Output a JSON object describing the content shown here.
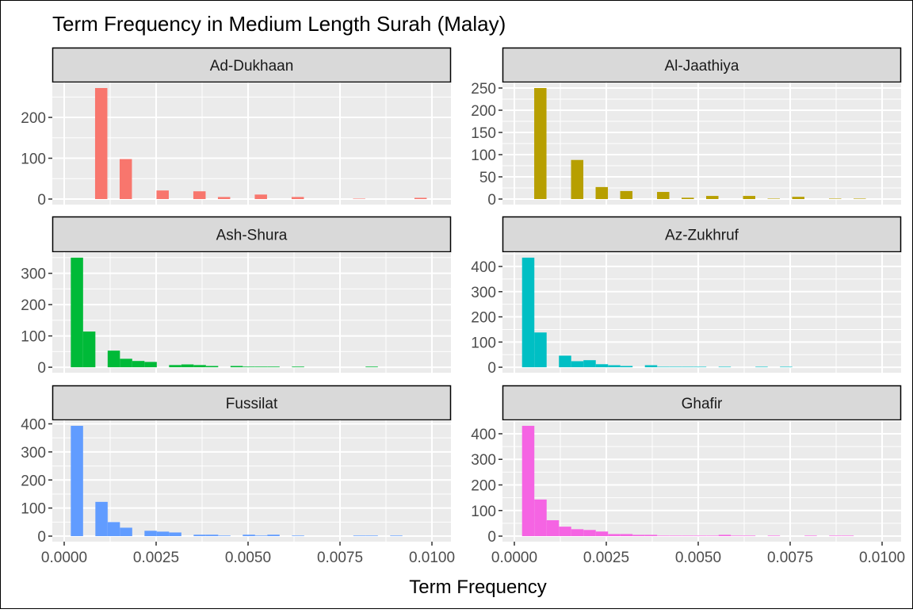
{
  "chart_data": {
    "type": "bar",
    "subtype": "faceted histogram",
    "title": "Term Frequency in Medium Length Surah (Malay)",
    "xlabel": "Term Frequency",
    "ylabel": "",
    "x_ticks": [
      "0.0000",
      "0.0025",
      "0.0050",
      "0.0075",
      "0.0100"
    ],
    "x_tick_values": [
      0,
      0.0025,
      0.005,
      0.0075,
      0.01
    ],
    "xlim": [
      -0.000323,
      0.010517
    ],
    "grid": true,
    "legend": "none",
    "bin_width": 0.000334,
    "panels": [
      {
        "name": "Ad-Dukhaan",
        "color": "#F8766D",
        "bin_start": 0.00084,
        "y_ticks": [
          0,
          100,
          200
        ],
        "counts": [
          272,
          0,
          98,
          0,
          0,
          21,
          0,
          0,
          19,
          0,
          5,
          0,
          0,
          11,
          0,
          0,
          5,
          0,
          0,
          0,
          0,
          1,
          0,
          0,
          0,
          0,
          3
        ]
      },
      {
        "name": "Al-Jaathiya",
        "color": "#B79F00",
        "bin_start": 0.00054,
        "y_ticks": [
          0,
          50,
          100,
          150,
          200,
          250
        ],
        "counts": [
          250,
          0,
          0,
          88,
          0,
          27,
          0,
          18,
          0,
          0,
          16,
          0,
          3,
          0,
          7,
          0,
          0,
          7,
          0,
          1,
          0,
          5,
          0,
          0,
          1,
          0,
          1
        ]
      },
      {
        "name": "Ash-Shura",
        "color": "#00BA38",
        "bin_start": 0.00018,
        "y_ticks": [
          0,
          100,
          200,
          300
        ],
        "counts": [
          350,
          114,
          0,
          53,
          27,
          20,
          17,
          0,
          7,
          9,
          7,
          4,
          0,
          4,
          2,
          2,
          2,
          0,
          2,
          0,
          0,
          0,
          0,
          0,
          2
        ]
      },
      {
        "name": "Az-Zukhruf",
        "color": "#00BFC4",
        "bin_start": 0.00021,
        "y_ticks": [
          0,
          100,
          200,
          300,
          400
        ],
        "counts": [
          435,
          138,
          0,
          46,
          24,
          28,
          12,
          8,
          5,
          0,
          8,
          2,
          2,
          2,
          2,
          0,
          2,
          0,
          0,
          2,
          0,
          2
        ]
      },
      {
        "name": "Fussilat",
        "color": "#619CFF",
        "bin_start": 0.00018,
        "y_ticks": [
          0,
          100,
          200,
          300,
          400
        ],
        "counts": [
          393,
          0,
          122,
          50,
          30,
          0,
          19,
          16,
          13,
          0,
          5,
          5,
          2,
          0,
          5,
          2,
          5,
          0,
          2,
          0,
          0,
          0,
          0,
          2,
          2,
          0,
          2
        ]
      },
      {
        "name": "Ghafir",
        "color": "#F564E3",
        "bin_start": 0.00021,
        "y_ticks": [
          0,
          100,
          200,
          300,
          400
        ],
        "counts": [
          431,
          143,
          62,
          37,
          27,
          24,
          18,
          8,
          8,
          5,
          5,
          2,
          2,
          2,
          2,
          2,
          5,
          2,
          2,
          0,
          2,
          0,
          0,
          2,
          0,
          2,
          2
        ]
      }
    ]
  }
}
